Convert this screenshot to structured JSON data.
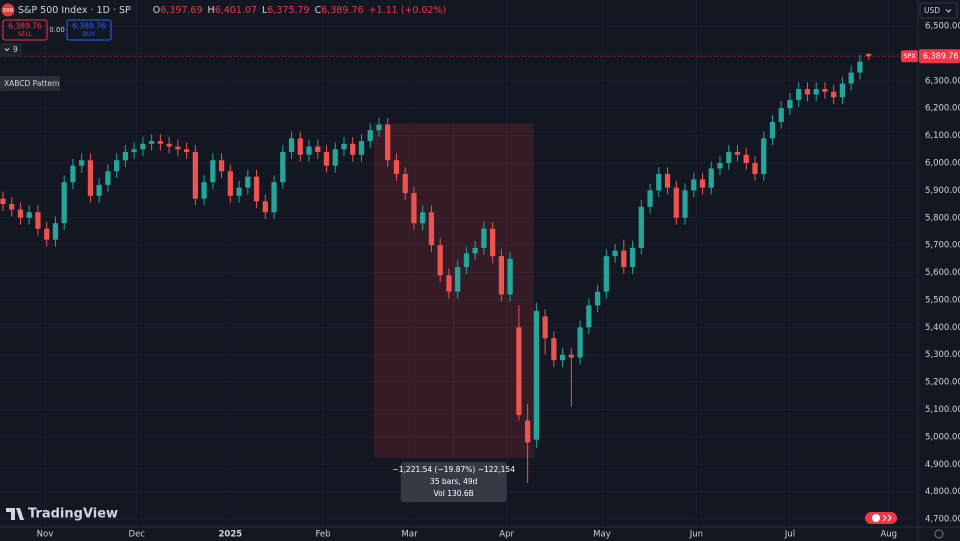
{
  "header": {
    "logo": "500",
    "symbol": "S&P 500 Index · 1D · SP",
    "ohlc": [
      {
        "key": "O",
        "value": "6,397.69"
      },
      {
        "key": "H",
        "value": "6,401.07"
      },
      {
        "key": "L",
        "value": "6,375.79"
      },
      {
        "key": "C",
        "value": "6,389.76"
      }
    ],
    "change": "+1.11 (+0.02%)"
  },
  "trade": {
    "sell_price": "6,389.76",
    "sell": "SELL",
    "spread": "0.00",
    "buy_price": "6,389.76",
    "buy": "BUY"
  },
  "indicators_count": "9",
  "pattern_button": "XABCD Pattern",
  "currency": "USD",
  "brand": "TradingView",
  "chart_data": {
    "type": "candlestick",
    "up_color": "#26a69a",
    "down_color": "#ef5350",
    "grid": true,
    "open": [
      5870,
      5850,
      5830,
      5800,
      5820,
      5760,
      5720,
      5780,
      5930,
      5990,
      6010,
      5880,
      5920,
      5970,
      6010,
      6040,
      6050,
      6070,
      6080,
      6070,
      6060,
      6050,
      6040,
      5870,
      5930,
      6010,
      5970,
      5880,
      5910,
      5950,
      5860,
      5820,
      5930,
      6040,
      6090,
      6030,
      6060,
      6040,
      5990,
      6050,
      6070,
      6030,
      6080,
      6120,
      6140,
      6010,
      5960,
      5890,
      5780,
      5820,
      5700,
      5590,
      5530,
      5620,
      5670,
      5690,
      5760,
      5660,
      5520,
      5400,
      5060,
      4990,
      5440,
      5360,
      5280,
      5300,
      5290,
      5400,
      5480,
      5530,
      5660,
      5680,
      5620,
      5690,
      5840,
      5900,
      5960,
      5910,
      5800,
      5900,
      5940,
      5910,
      5980,
      6000,
      6040,
      6030,
      6000,
      5960,
      6090,
      6150,
      6200,
      6230,
      6270,
      6250,
      6270,
      6260,
      6240,
      6290,
      6330,
      6397.69
    ],
    "high": [
      5895,
      5875,
      5855,
      5845,
      5845,
      5785,
      5805,
      5955,
      6015,
      6035,
      6035,
      5945,
      5995,
      6035,
      6065,
      6075,
      6095,
      6105,
      6105,
      6095,
      6085,
      6075,
      6065,
      5955,
      6035,
      6035,
      5995,
      5935,
      5975,
      5975,
      5885,
      5955,
      6065,
      6115,
      6115,
      6085,
      6085,
      6065,
      6075,
      6095,
      6095,
      6105,
      6145,
      6165,
      6165,
      6035,
      5985,
      5915,
      5845,
      5845,
      5725,
      5615,
      5645,
      5695,
      5715,
      5785,
      5785,
      5685,
      5675,
      5480,
      5120,
      5490,
      5465,
      5385,
      5325,
      5325,
      5425,
      5505,
      5555,
      5685,
      5705,
      5720,
      5715,
      5865,
      5925,
      5985,
      5985,
      5935,
      5925,
      5965,
      5965,
      6005,
      6025,
      6065,
      6065,
      6055,
      6025,
      6115,
      6175,
      6225,
      6255,
      6295,
      6295,
      6295,
      6295,
      6285,
      6315,
      6355,
      6395,
      6401.07
    ],
    "low": [
      5825,
      5805,
      5775,
      5775,
      5735,
      5695,
      5695,
      5755,
      5905,
      5965,
      5855,
      5855,
      5895,
      5945,
      5985,
      6015,
      6025,
      6045,
      6045,
      6035,
      6025,
      6015,
      5845,
      5845,
      5905,
      5945,
      5855,
      5855,
      5885,
      5835,
      5795,
      5795,
      5905,
      6015,
      6005,
      6005,
      6015,
      5965,
      5965,
      6025,
      6005,
      6005,
      6055,
      6095,
      5985,
      5935,
      5865,
      5755,
      5755,
      5675,
      5565,
      5505,
      5505,
      5595,
      5645,
      5665,
      5635,
      5495,
      5495,
      5060,
      4832,
      4960,
      5300,
      5255,
      5255,
      5110,
      5265,
      5375,
      5455,
      5505,
      5635,
      5595,
      5595,
      5665,
      5815,
      5875,
      5885,
      5775,
      5775,
      5875,
      5885,
      5885,
      5955,
      5975,
      6005,
      5975,
      5935,
      5935,
      6065,
      6125,
      6175,
      6205,
      6225,
      6225,
      6235,
      6215,
      6215,
      6265,
      6305,
      6375.79
    ],
    "close": [
      5850,
      5830,
      5800,
      5820,
      5760,
      5720,
      5780,
      5930,
      5990,
      6010,
      5880,
      5920,
      5970,
      6010,
      6040,
      6050,
      6070,
      6080,
      6070,
      6060,
      6050,
      6040,
      5870,
      5930,
      6010,
      5970,
      5880,
      5910,
      5950,
      5860,
      5820,
      5930,
      6040,
      6090,
      6030,
      6060,
      6040,
      5990,
      6050,
      6070,
      6030,
      6080,
      6120,
      6140,
      6010,
      5960,
      5890,
      5780,
      5820,
      5700,
      5590,
      5530,
      5620,
      5670,
      5690,
      5760,
      5660,
      5520,
      5650,
      5080,
      4980,
      5460,
      5360,
      5280,
      5300,
      5290,
      5400,
      5480,
      5530,
      5660,
      5680,
      5620,
      5690,
      5840,
      5900,
      5960,
      5910,
      5800,
      5900,
      5940,
      5910,
      5980,
      6000,
      6040,
      6030,
      6000,
      5960,
      6090,
      6150,
      6200,
      6230,
      6270,
      6250,
      6270,
      6260,
      6240,
      6290,
      6330,
      6370,
      6389.76
    ],
    "xlim": [
      -0.34,
      104.3
    ],
    "xticks": [
      {
        "value": 4.8,
        "label": "Nov"
      },
      {
        "value": 15.3,
        "label": "Dec"
      },
      {
        "value": 26.0,
        "label": "2025"
      },
      {
        "value": 36.6,
        "label": "Feb"
      },
      {
        "value": 46.5,
        "label": "Mar"
      },
      {
        "value": 57.6,
        "label": "Apr"
      },
      {
        "value": 68.5,
        "label": "May"
      },
      {
        "value": 79.3,
        "label": "Jun"
      },
      {
        "value": 90.0,
        "label": "Jul"
      },
      {
        "value": 101.3,
        "label": "Aug"
      }
    ],
    "ylim": [
      4671,
      6595
    ],
    "yticks": [
      {
        "value": 6500,
        "label": "6,500.00"
      },
      {
        "value": 6400,
        "label": "6,400.00"
      },
      {
        "value": 6300,
        "label": "6,300.00"
      },
      {
        "value": 6200,
        "label": "6,200.00"
      },
      {
        "value": 6100,
        "label": "6,100.00"
      },
      {
        "value": 6000,
        "label": "6,000.00"
      },
      {
        "value": 5900,
        "label": "5,900.00"
      },
      {
        "value": 5800,
        "label": "5,800.00"
      },
      {
        "value": 5700,
        "label": "5,700.00"
      },
      {
        "value": 5600,
        "label": "5,600.00"
      },
      {
        "value": 5500,
        "label": "5,500.00"
      },
      {
        "value": 5400,
        "label": "5,400.00"
      },
      {
        "value": 5300,
        "label": "5,300.00"
      },
      {
        "value": 5200,
        "label": "5,200.00"
      },
      {
        "value": 5100,
        "label": "5,100.00"
      },
      {
        "value": 5000,
        "label": "5,000.00"
      },
      {
        "value": 4900,
        "label": "4,900.00"
      },
      {
        "value": 4800,
        "label": "4,800.00"
      },
      {
        "value": 4700,
        "label": "4,700.00"
      }
    ],
    "last_price": {
      "value": 6389.76,
      "label": "6,389.76",
      "tag": "SPX",
      "color": "#f23645"
    },
    "measure": {
      "x_from": 42.4,
      "x_to": 60.7,
      "price_from": 6144.06,
      "price_to": 4922.52,
      "color": "#f23645",
      "lines": [
        "−1,221.54 (−19.87%) −122,154",
        "35 bars, 49d",
        "Vol 130.6B"
      ]
    }
  }
}
